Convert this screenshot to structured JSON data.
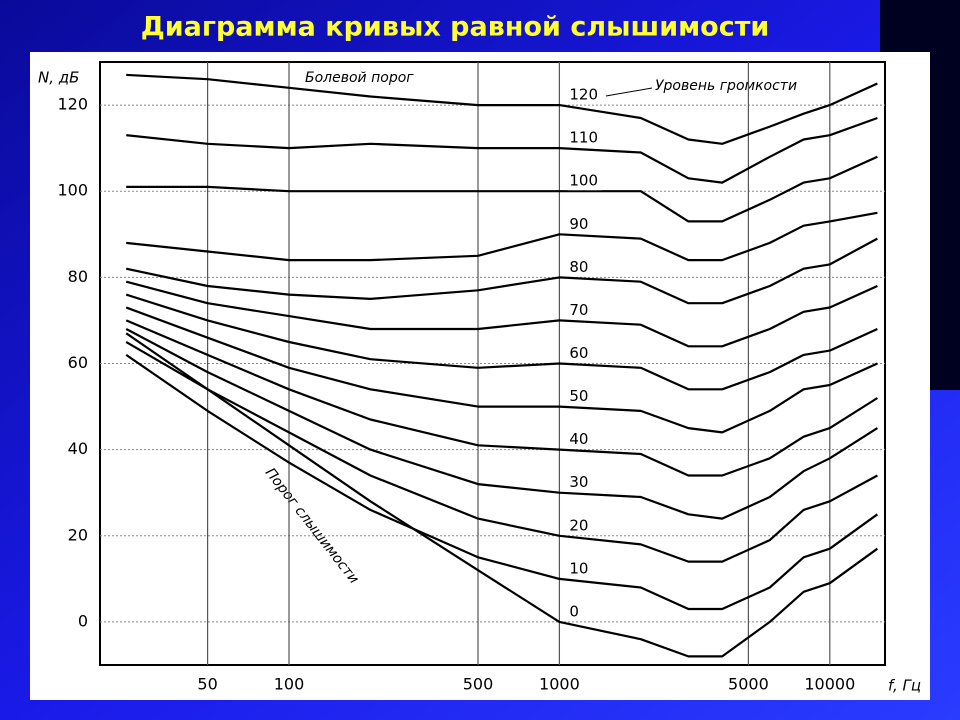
{
  "chart_data": {
    "type": "line",
    "title": "Диаграмма кривых равной слышимости",
    "y_label": "N, дБ",
    "x_label": "f, Гц",
    "annotations": [
      "Болевой порог",
      "Уровень громкости",
      "Порог слышимости"
    ],
    "x": [
      25,
      50,
      100,
      200,
      500,
      1000,
      2000,
      3000,
      4000,
      6000,
      8000,
      10000,
      15000
    ],
    "xlim": [
      20,
      16000
    ],
    "xticks": [
      50,
      100,
      500,
      1000,
      5000,
      10000
    ],
    "x_log": true,
    "ylim": [
      -10,
      130
    ],
    "yticks": [
      0,
      20,
      40,
      60,
      80,
      100,
      120
    ],
    "grid": true,
    "color": "#000000",
    "series": [
      {
        "name": "0",
        "values": [
          67,
          54,
          41,
          28,
          12,
          0,
          -4,
          -8,
          -8,
          0,
          7,
          9,
          17
        ]
      },
      {
        "name": "10",
        "values": [
          62,
          49,
          37,
          26,
          15,
          10,
          8,
          3,
          3,
          8,
          15,
          17,
          25
        ]
      },
      {
        "name": "20",
        "values": [
          65,
          54,
          44,
          34,
          24,
          20,
          18,
          14,
          14,
          19,
          26,
          28,
          34
        ]
      },
      {
        "name": "30",
        "values": [
          68,
          58,
          49,
          40,
          32,
          30,
          29,
          25,
          24,
          29,
          35,
          38,
          45
        ]
      },
      {
        "name": "40",
        "values": [
          70,
          62,
          54,
          47,
          41,
          40,
          39,
          34,
          34,
          38,
          43,
          45,
          52
        ]
      },
      {
        "name": "50",
        "values": [
          73,
          66,
          59,
          54,
          50,
          50,
          49,
          45,
          44,
          49,
          54,
          55,
          60
        ]
      },
      {
        "name": "60",
        "values": [
          76,
          70,
          65,
          61,
          59,
          60,
          59,
          54,
          54,
          58,
          62,
          63,
          68
        ]
      },
      {
        "name": "70",
        "values": [
          79,
          74,
          71,
          68,
          68,
          70,
          69,
          64,
          64,
          68,
          72,
          73,
          78
        ]
      },
      {
        "name": "80",
        "values": [
          82,
          78,
          76,
          75,
          77,
          80,
          79,
          74,
          74,
          78,
          82,
          83,
          89
        ]
      },
      {
        "name": "90",
        "values": [
          88,
          86,
          84,
          84,
          85,
          90,
          89,
          84,
          84,
          88,
          92,
          93,
          95
        ]
      },
      {
        "name": "100",
        "values": [
          101,
          101,
          100,
          100,
          100,
          100,
          100,
          93,
          93,
          98,
          102,
          103,
          108
        ]
      },
      {
        "name": "110",
        "values": [
          113,
          111,
          110,
          111,
          110,
          110,
          109,
          103,
          102,
          108,
          112,
          113,
          117
        ]
      },
      {
        "name": "120",
        "values": [
          127,
          126,
          124,
          122,
          120,
          120,
          117,
          112,
          111,
          115,
          118,
          120,
          125
        ]
      }
    ]
  }
}
